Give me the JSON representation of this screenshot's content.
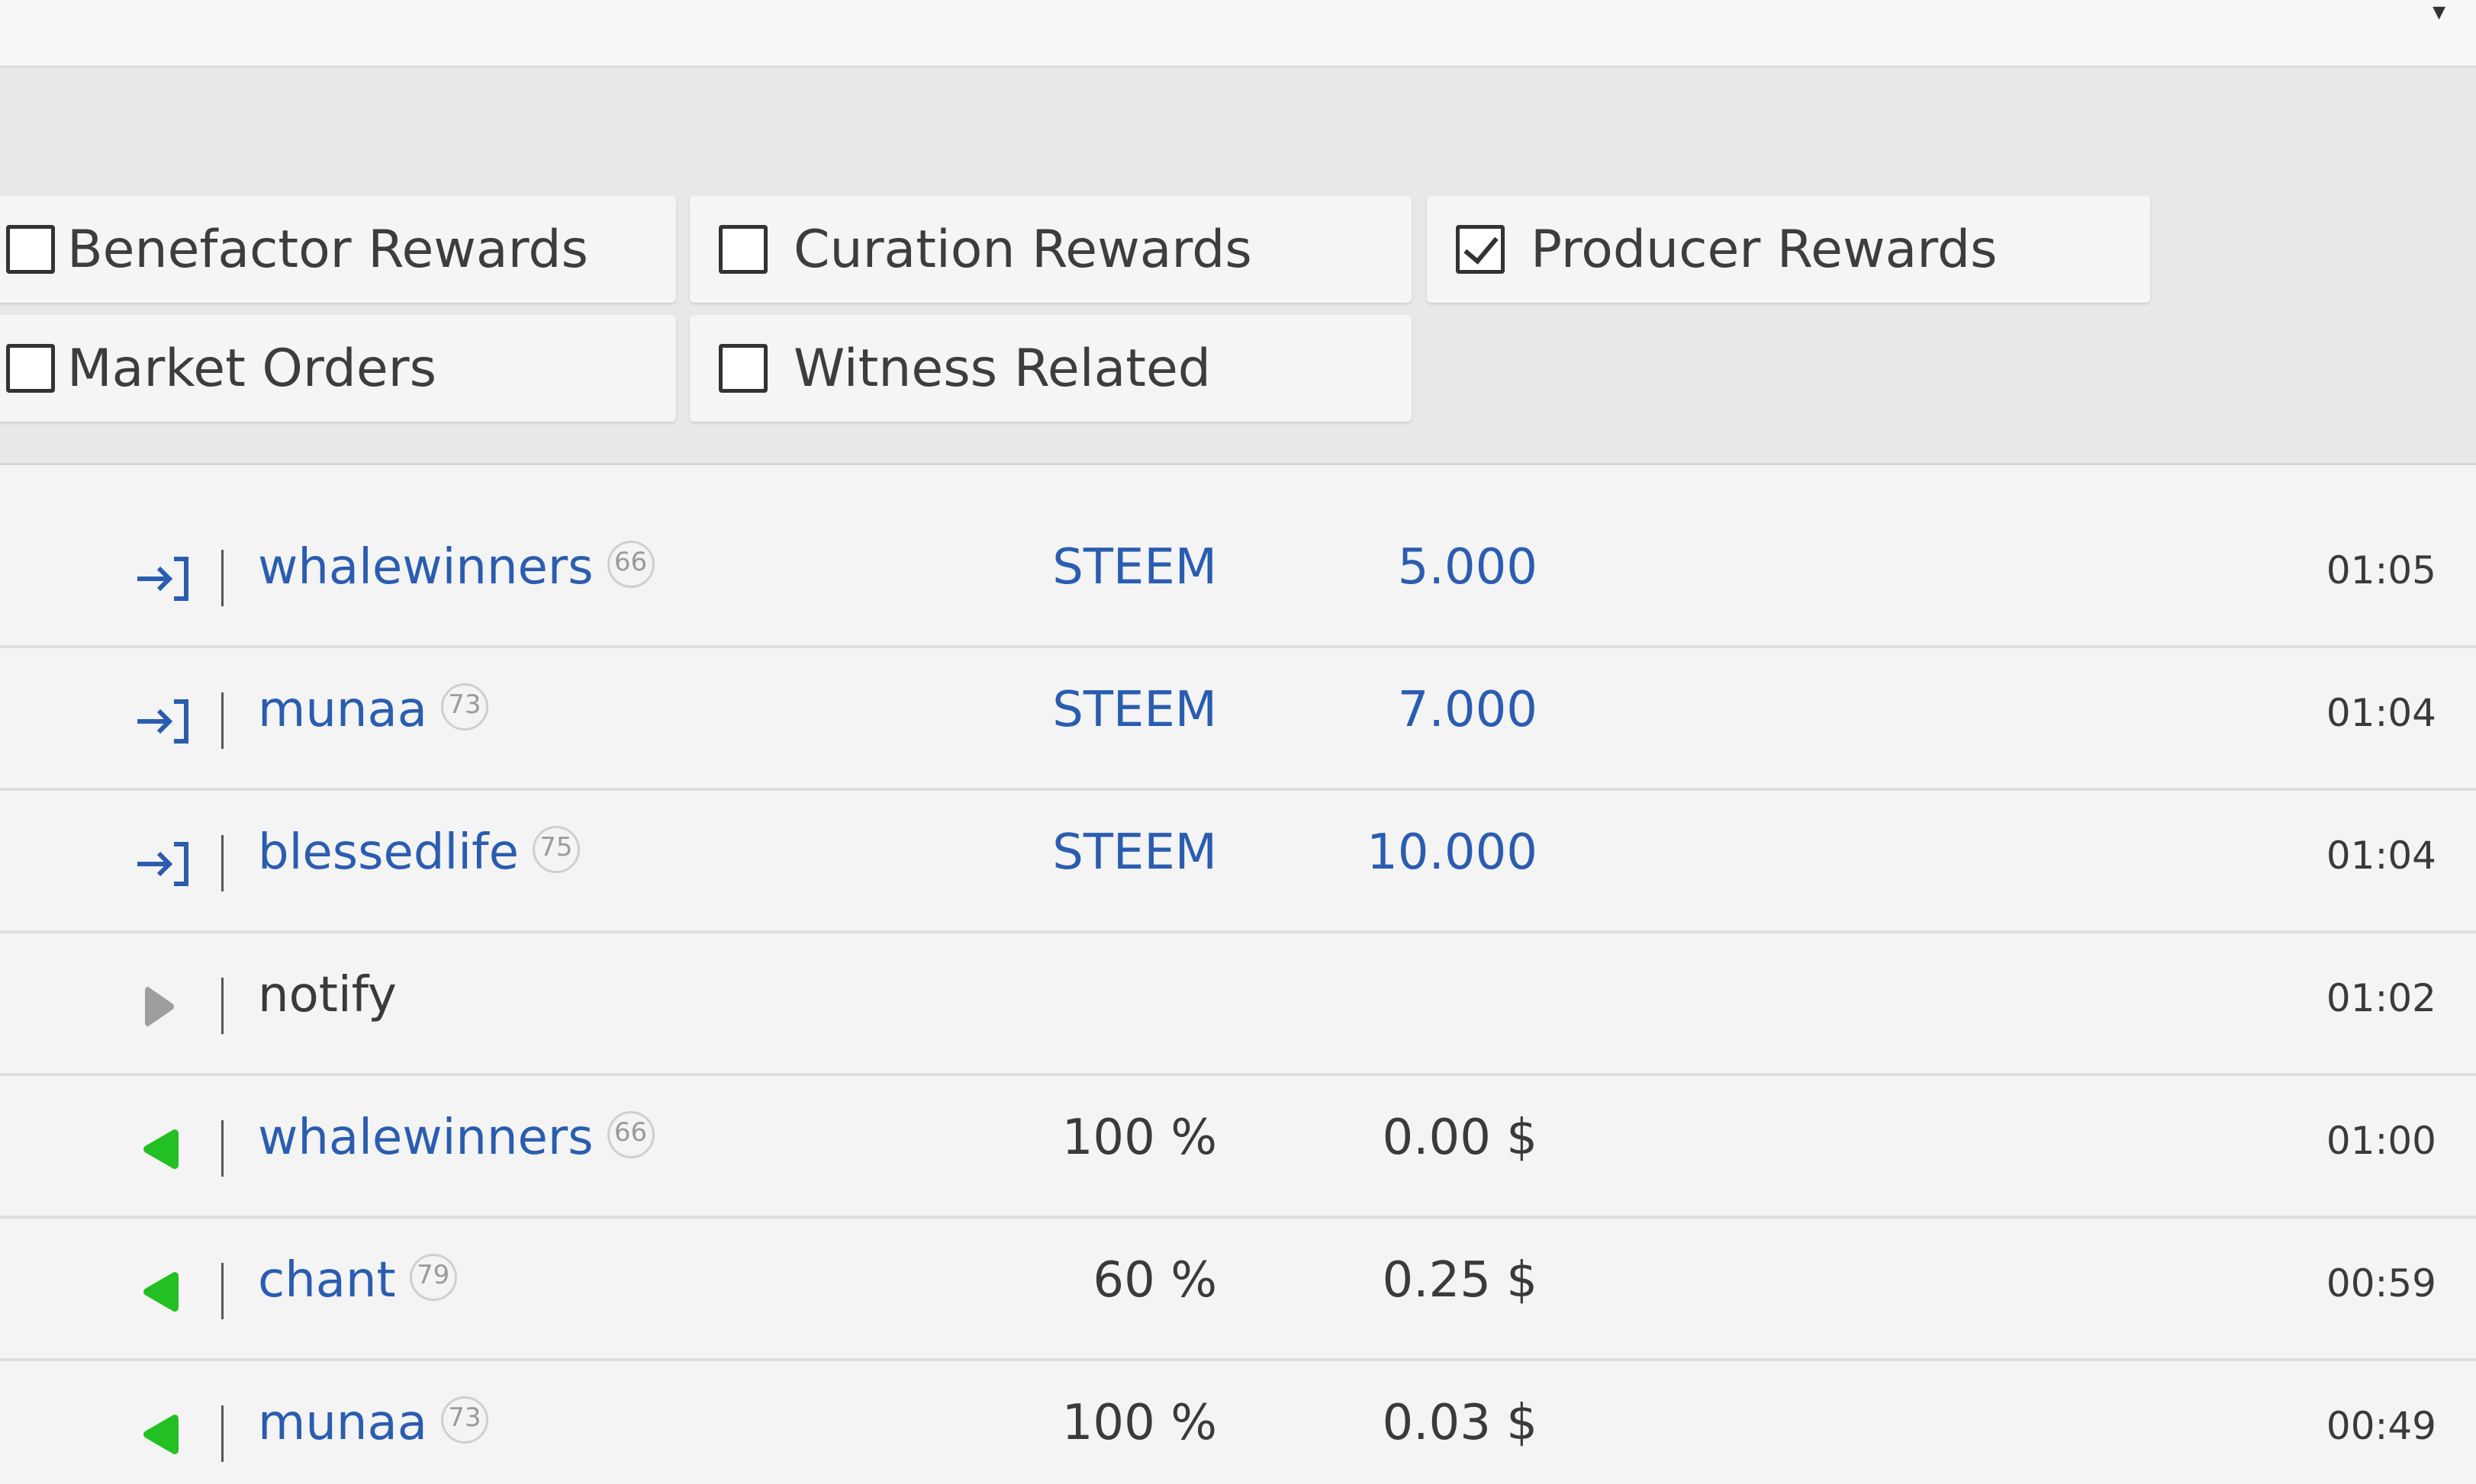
{
  "filters": [
    {
      "label": "Benefactor Rewards",
      "checked": false
    },
    {
      "label": "Curation Rewards",
      "checked": false
    },
    {
      "label": "Producer Rewards",
      "checked": true
    },
    {
      "label": "Market Orders",
      "checked": false
    },
    {
      "label": "Witness Related",
      "checked": false
    }
  ],
  "rows": [
    {
      "icon": "transfer-in-icon",
      "name": "whalewinners",
      "rep": "66",
      "col_a": "STEEM",
      "col_b": "5.000",
      "time": "01:05"
    },
    {
      "icon": "transfer-in-icon",
      "name": "munaa",
      "rep": "73",
      "col_a": "STEEM",
      "col_b": "7.000",
      "time": "01:04"
    },
    {
      "icon": "transfer-in-icon",
      "name": "blessedlife",
      "rep": "75",
      "col_a": "STEEM",
      "col_b": "10.000",
      "time": "01:04"
    },
    {
      "icon": "play-right-icon",
      "name": "notify",
      "rep": "",
      "col_a": "",
      "col_b": "",
      "time": "01:02"
    },
    {
      "icon": "vote-left-icon",
      "name": "whalewinners",
      "rep": "66",
      "col_a": "100 %",
      "col_b": "0.00 $",
      "time": "01:00"
    },
    {
      "icon": "vote-left-icon",
      "name": "chant",
      "rep": "79",
      "col_a": "60 %",
      "col_b": "0.25 $",
      "time": "00:59"
    },
    {
      "icon": "vote-left-icon",
      "name": "munaa",
      "rep": "73",
      "col_a": "100 %",
      "col_b": "0.03 $",
      "time": "00:49"
    }
  ],
  "colors": {
    "link": "#2a5db0",
    "vote_green": "#22c022",
    "play_gray": "#9e9e9e"
  }
}
